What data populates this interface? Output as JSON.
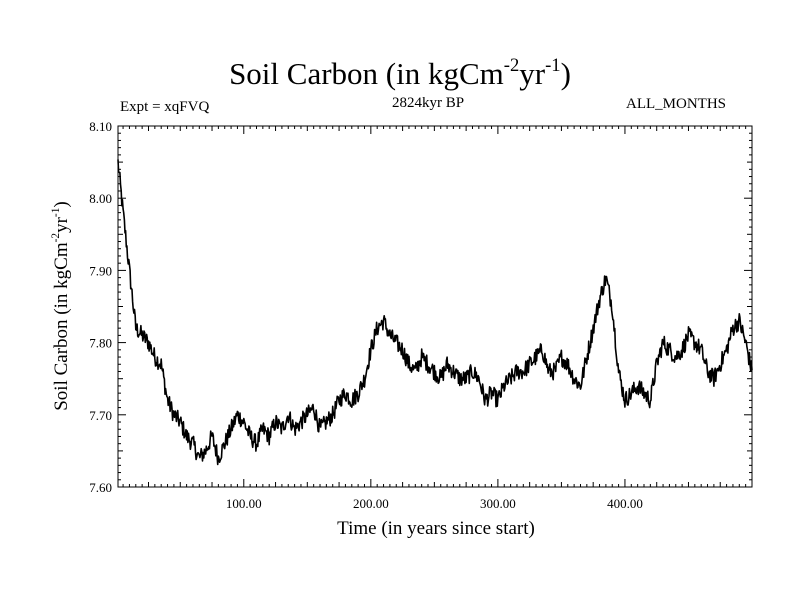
{
  "chart_data": {
    "type": "line",
    "title": "Soil Carbon (in kgCm",
    "title_sup1": "-2",
    "title_mid": "yr",
    "title_sup2": "-1",
    "title_end": ")",
    "subtitle": "2824kyr BP",
    "experiment": "Expt = xqFVQ",
    "period": "ALL_MONTHS",
    "xlabel": "Time (in years since start)",
    "ylabel": "Soil Carbon (in kgCm",
    "ylabel_sup1": "-2",
    "ylabel_mid": "yr",
    "ylabel_sup2": "-1",
    "ylabel_end": ")",
    "xlim": [
      1,
      500
    ],
    "ylim": [
      7.6,
      8.1
    ],
    "x_ticks": [
      100,
      200,
      300,
      400
    ],
    "x_tick_labels": [
      "100.00",
      "200.00",
      "300.00",
      "400.00"
    ],
    "y_ticks": [
      7.6,
      7.7,
      7.8,
      7.9,
      8.0,
      8.1
    ],
    "y_tick_labels": [
      "7.60",
      "7.70",
      "7.80",
      "7.90",
      "8.00",
      "8.10"
    ],
    "series": [
      {
        "name": "Soil Carbon",
        "color": "#000000",
        "anchors_x": [
          1,
          5,
          10,
          15,
          20,
          25,
          30,
          35,
          40,
          45,
          50,
          55,
          60,
          65,
          70,
          75,
          80,
          85,
          90,
          95,
          100,
          105,
          110,
          115,
          120,
          125,
          130,
          135,
          140,
          145,
          150,
          155,
          160,
          165,
          170,
          175,
          180,
          185,
          190,
          195,
          200,
          205,
          210,
          215,
          220,
          225,
          230,
          235,
          240,
          245,
          250,
          255,
          260,
          265,
          270,
          275,
          280,
          285,
          290,
          295,
          300,
          305,
          310,
          315,
          320,
          325,
          330,
          335,
          340,
          345,
          350,
          355,
          360,
          365,
          370,
          375,
          380,
          385,
          390,
          395,
          400,
          405,
          410,
          415,
          420,
          425,
          430,
          435,
          440,
          445,
          450,
          455,
          460,
          465,
          470,
          475,
          480,
          485,
          490,
          495,
          500
        ],
        "anchors_y": [
          8.05,
          7.98,
          7.9,
          7.82,
          7.81,
          7.8,
          7.78,
          7.77,
          7.72,
          7.7,
          7.69,
          7.67,
          7.66,
          7.64,
          7.65,
          7.67,
          7.64,
          7.66,
          7.68,
          7.7,
          7.69,
          7.67,
          7.66,
          7.68,
          7.67,
          7.69,
          7.68,
          7.7,
          7.68,
          7.69,
          7.7,
          7.71,
          7.68,
          7.69,
          7.7,
          7.72,
          7.73,
          7.72,
          7.73,
          7.75,
          7.79,
          7.82,
          7.83,
          7.81,
          7.8,
          7.79,
          7.77,
          7.76,
          7.78,
          7.77,
          7.76,
          7.75,
          7.77,
          7.76,
          7.75,
          7.75,
          7.76,
          7.75,
          7.72,
          7.73,
          7.72,
          7.74,
          7.75,
          7.76,
          7.76,
          7.77,
          7.78,
          7.79,
          7.76,
          7.76,
          7.78,
          7.77,
          7.75,
          7.74,
          7.78,
          7.82,
          7.86,
          7.89,
          7.85,
          7.76,
          7.72,
          7.73,
          7.74,
          7.73,
          7.72,
          7.77,
          7.8,
          7.79,
          7.78,
          7.79,
          7.81,
          7.8,
          7.79,
          7.76,
          7.75,
          7.77,
          7.79,
          7.82,
          7.83,
          7.8,
          7.76
        ],
        "noise_amplitude": 0.012
      }
    ]
  }
}
